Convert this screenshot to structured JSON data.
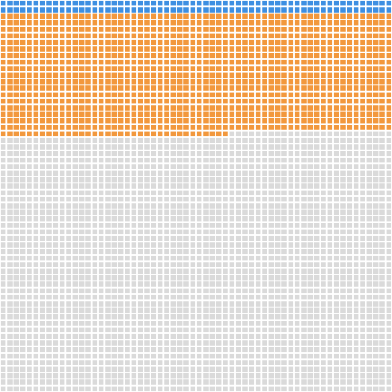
{
  "chart_data": {
    "type": "waffle",
    "rows": 60,
    "columns": 60,
    "values": [
      120,
      1115,
      2365
    ],
    "colors": [
      "#3d8fe2",
      "#f2983d",
      "#dadada"
    ]
  }
}
